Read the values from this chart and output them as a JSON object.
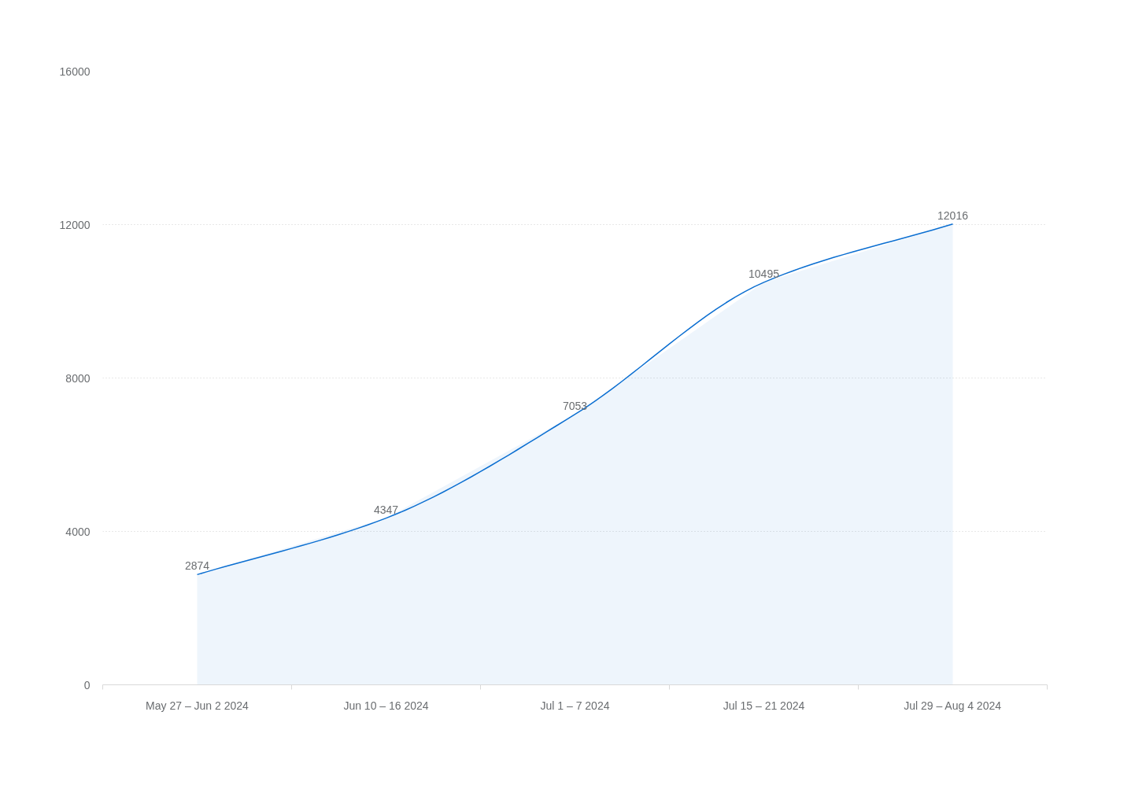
{
  "chart_data": {
    "type": "area",
    "categories": [
      "May 27 – Jun 2 2024",
      "Jun 10 – 16 2024",
      "Jul 1 – 7 2024",
      "Jul 15 – 21 2024",
      "Jul 29 – Aug 4 2024"
    ],
    "series": [
      {
        "color": "#0a6ed1",
        "values": [
          2874,
          4347,
          7053,
          10495,
          12016
        ]
      }
    ],
    "ylim": [
      0,
      16000
    ],
    "yticks": [
      0,
      4000,
      8000,
      12000,
      16000
    ],
    "grid": "y",
    "data_labels": true,
    "marker": "none",
    "line_style": "solid"
  }
}
